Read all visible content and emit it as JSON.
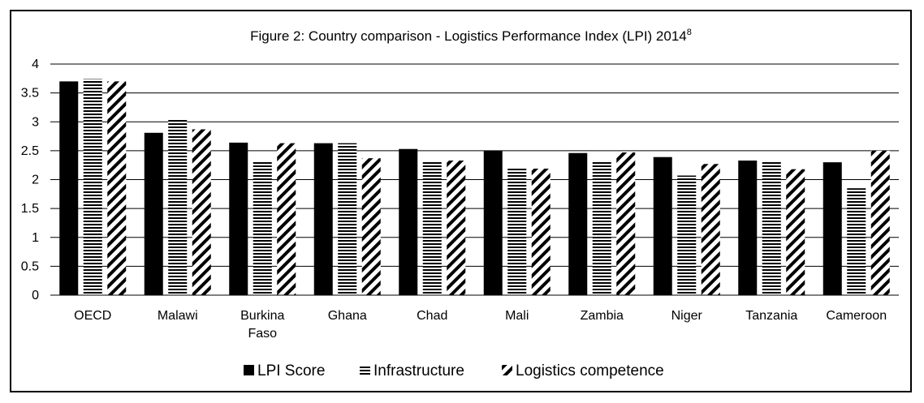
{
  "chart_data": {
    "type": "bar",
    "title": "Figure 2: Country comparison - Logistics Performance Index (LPI) 2014",
    "title_superscript": "8",
    "categories": [
      [
        "OECD"
      ],
      [
        "Malawi"
      ],
      [
        "Burkina",
        "Faso"
      ],
      [
        "Ghana"
      ],
      [
        "Chad"
      ],
      [
        "Mali"
      ],
      [
        "Zambia"
      ],
      [
        "Niger"
      ],
      [
        "Tanzania"
      ],
      [
        "Cameroon"
      ]
    ],
    "series": [
      {
        "name": "LPI Score",
        "pattern": "solid",
        "values": [
          3.7,
          2.81,
          2.64,
          2.63,
          2.53,
          2.5,
          2.46,
          2.39,
          2.33,
          2.3
        ]
      },
      {
        "name": "Infrastructure",
        "pattern": "horizontal-lines",
        "values": [
          3.74,
          3.05,
          2.32,
          2.63,
          2.32,
          2.19,
          2.33,
          2.07,
          2.32,
          1.85
        ]
      },
      {
        "name": "Logistics competence",
        "pattern": "diagonal-lines",
        "values": [
          3.7,
          2.87,
          2.63,
          2.37,
          2.33,
          2.19,
          2.47,
          2.27,
          2.18,
          2.5
        ]
      }
    ],
    "ylim": [
      0,
      4
    ],
    "yticks": [
      "0",
      "0.5",
      "1",
      "1.5",
      "2",
      "2.5",
      "3",
      "3.5",
      "4"
    ],
    "grid": true,
    "legend_position": "bottom",
    "colors": {
      "bar": "#000000",
      "grid": "#000000",
      "background": "#ffffff"
    }
  }
}
